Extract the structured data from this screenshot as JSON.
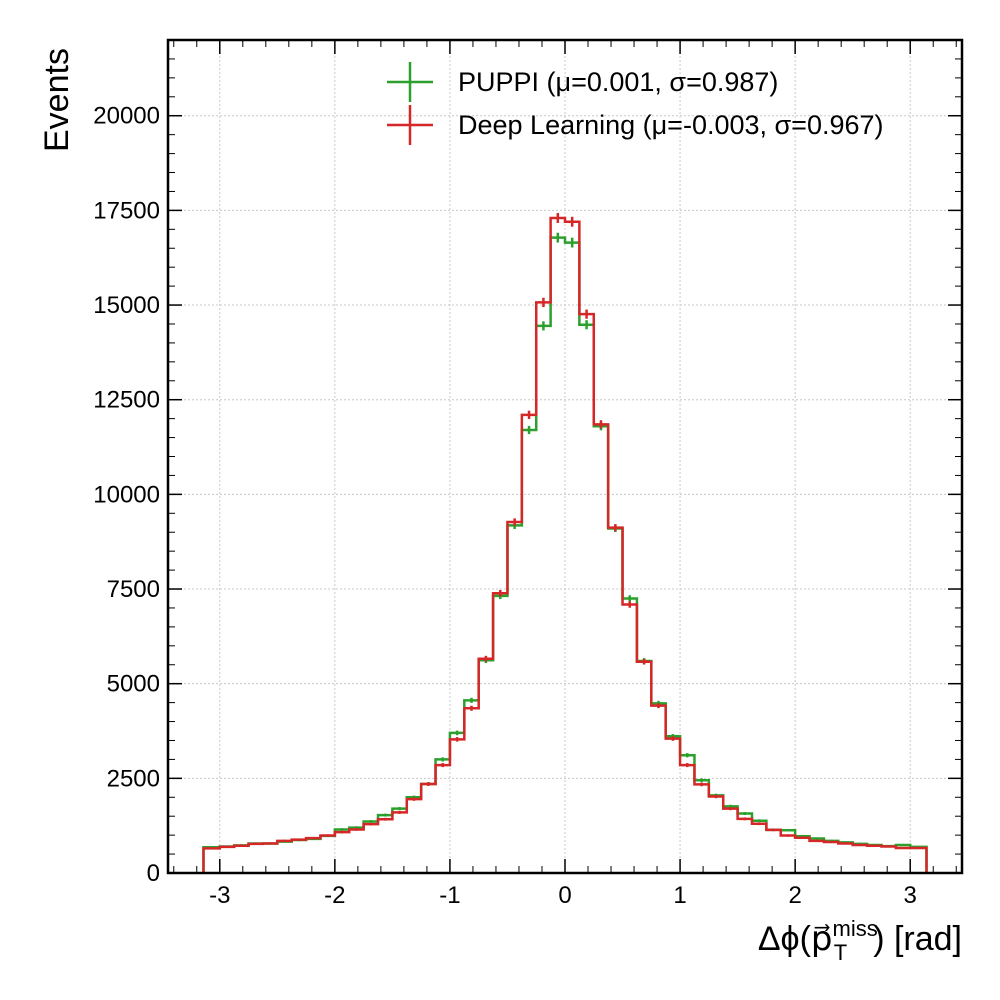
{
  "chart_data": {
    "type": "histogram-step",
    "xlabel": {
      "prefix": "Δϕ(",
      "vec": "p⃗",
      "sub": "T",
      "sup": "miss",
      "suffix": ") [rad]"
    },
    "ylabel": "Events",
    "xlim": [
      -3.45,
      3.45
    ],
    "ylim": [
      0,
      22000
    ],
    "x_ticks": [
      -3,
      -2,
      -1,
      0,
      1,
      2,
      3
    ],
    "x_tick_labels": [
      "-3",
      "-2",
      "-1",
      "0",
      "1",
      "2",
      "3"
    ],
    "y_ticks": [
      0,
      2500,
      5000,
      7500,
      10000,
      12500,
      15000,
      17500,
      20000
    ],
    "y_tick_labels": [
      "0",
      "2500",
      "5000",
      "7500",
      "10000",
      "12500",
      "15000",
      "17500",
      "20000"
    ],
    "grid": true,
    "legend_position": "top-right",
    "bin_edges": [
      -3.1416,
      -3.0,
      -2.875,
      -2.75,
      -2.625,
      -2.5,
      -2.375,
      -2.25,
      -2.125,
      -2.0,
      -1.875,
      -1.75,
      -1.625,
      -1.5,
      -1.375,
      -1.25,
      -1.125,
      -1.0,
      -0.875,
      -0.75,
      -0.625,
      -0.5,
      -0.375,
      -0.25,
      -0.125,
      0.0,
      0.125,
      0.25,
      0.375,
      0.5,
      0.625,
      0.75,
      0.875,
      1.0,
      1.125,
      1.25,
      1.375,
      1.5,
      1.625,
      1.75,
      1.875,
      2.0,
      2.125,
      2.25,
      2.375,
      2.5,
      2.625,
      2.75,
      2.875,
      3.0,
      3.1416
    ],
    "series": [
      {
        "name": "PUPPI (μ=0.001, σ=0.987)",
        "color": "#2ca02c",
        "values": [
          680,
          700,
          730,
          780,
          780,
          830,
          870,
          900,
          980,
          1150,
          1200,
          1360,
          1530,
          1700,
          2000,
          2350,
          3000,
          3700,
          4560,
          5620,
          7320,
          9180,
          11700,
          14450,
          16780,
          16650,
          14480,
          11800,
          9100,
          7250,
          5600,
          4480,
          3610,
          3110,
          2450,
          2050,
          1760,
          1570,
          1380,
          1140,
          1130,
          970,
          910,
          850,
          810,
          770,
          740,
          710,
          740,
          690
        ]
      },
      {
        "name": "Deep Learning (μ=-0.003, σ=0.967)",
        "color": "#d62728",
        "values": [
          650,
          690,
          720,
          770,
          780,
          850,
          880,
          920,
          990,
          1080,
          1150,
          1290,
          1420,
          1600,
          1950,
          2350,
          2850,
          3530,
          4350,
          5660,
          7390,
          9270,
          12100,
          15070,
          17300,
          17200,
          14760,
          11850,
          9120,
          7090,
          5580,
          4420,
          3550,
          2850,
          2340,
          2020,
          1700,
          1430,
          1300,
          1140,
          990,
          930,
          850,
          820,
          780,
          740,
          720,
          700,
          660,
          660
        ]
      }
    ]
  }
}
